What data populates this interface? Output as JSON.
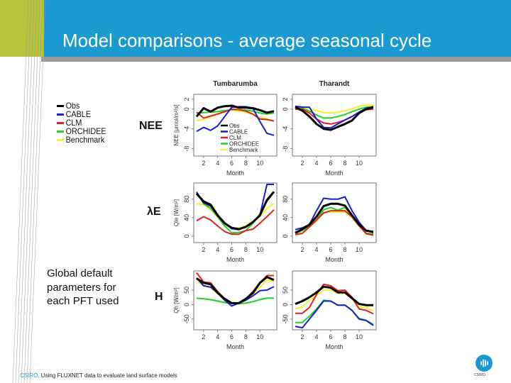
{
  "slide": {
    "title": "Model comparisons - average seasonal cycle",
    "row_labels": [
      "NEE",
      "λE",
      "H"
    ],
    "note": "Global default parameters for each PFT used",
    "footer_brand": "CSIRO.",
    "footer_text": " Using FLUXNET data to evaluate land surface models",
    "logo_text": "CSIRO"
  },
  "legend": [
    {
      "name": "Obs",
      "color": "#000000"
    },
    {
      "name": "CABLE",
      "color": "#1c1cd0"
    },
    {
      "name": "CLM",
      "color": "#e02020"
    },
    {
      "name": "ORCHIDEE",
      "color": "#22d022"
    },
    {
      "name": "Benchmark",
      "color": "#f4f030"
    }
  ],
  "chart_data": [
    {
      "type": "line",
      "title": "Tumbarumba",
      "xlabel": "Month",
      "ylabel": "NEE [µmol/m²/s]",
      "xlim": [
        0.6,
        12.4
      ],
      "ylim": [
        -9.5,
        3
      ],
      "xticks": [
        2,
        4,
        6,
        8,
        10
      ],
      "yticks": [
        2,
        0,
        -4,
        -8
      ],
      "legend": "inside-bottom",
      "x": [
        1,
        2,
        3,
        4,
        5,
        6,
        7,
        8,
        9,
        10,
        11,
        12
      ],
      "series": [
        {
          "name": "Obs",
          "values": [
            -1.5,
            0.2,
            -0.5,
            0.3,
            0.6,
            0.7,
            0.3,
            0.3,
            0.2,
            -0.2,
            -0.7,
            -0.4
          ]
        },
        {
          "name": "CABLE",
          "values": [
            -4.5,
            -3.7,
            -4.3,
            -3.4,
            -1.5,
            0.4,
            0.5,
            0.5,
            0.2,
            -2.5,
            -4.9,
            -5.3
          ]
        },
        {
          "name": "CLM",
          "values": [
            -0.6,
            -1.8,
            -1.4,
            -1,
            -0.5,
            0,
            -0.1,
            -0.4,
            -1,
            -2,
            -2.1,
            -2.4
          ]
        },
        {
          "name": "ORCHIDEE",
          "values": [
            -0.8,
            -0.7,
            -0.6,
            -0.5,
            -0.3,
            -0.1,
            -0.1,
            -0.2,
            -0.4,
            -0.8,
            -1,
            -0.8
          ]
        },
        {
          "name": "Benchmark",
          "values": [
            -2.3,
            -2.1,
            -1.6,
            -0.9,
            -0.4,
            -0.2,
            -0.4,
            -0.6,
            -1.1,
            -1.6,
            -2,
            -2.4
          ]
        }
      ]
    },
    {
      "type": "line",
      "title": "Tharandt",
      "xlabel": "Month",
      "ylabel": "",
      "xlim": [
        0.6,
        12.4
      ],
      "ylim": [
        -9.5,
        3
      ],
      "xticks": [
        2,
        4,
        6,
        8,
        10
      ],
      "yticks": [
        2,
        0,
        -4,
        -8
      ],
      "x": [
        1,
        2,
        3,
        4,
        5,
        6,
        7,
        8,
        9,
        10,
        11,
        12
      ],
      "series": [
        {
          "name": "Obs",
          "values": [
            0.4,
            -0.3,
            -1.5,
            -3,
            -4,
            -4.2,
            -3.6,
            -3,
            -2.3,
            -0.8,
            0,
            0.4
          ]
        },
        {
          "name": "CABLE",
          "values": [
            0.6,
            0.4,
            0.4,
            -2,
            -3.7,
            -3.8,
            -3,
            -2.2,
            -1.5,
            -0.6,
            0.2,
            0.4
          ]
        },
        {
          "name": "CLM",
          "values": [
            0,
            0,
            -0.8,
            -2,
            -2.8,
            -3,
            -2.7,
            -2.2,
            -1.5,
            -0.6,
            -0.1,
            0
          ]
        },
        {
          "name": "ORCHIDEE",
          "values": [
            0.5,
            0.2,
            -0.4,
            -1.2,
            -1.8,
            -1.8,
            -1.5,
            -1.1,
            -0.5,
            0,
            0.4,
            0.5
          ]
        },
        {
          "name": "Benchmark",
          "values": [
            0.6,
            0.5,
            0.1,
            -0.3,
            -0.7,
            -0.8,
            -0.6,
            -0.3,
            0.1,
            0.6,
            0.8,
            0.8
          ]
        }
      ]
    },
    {
      "type": "line",
      "title": "",
      "xlabel": "Month",
      "ylabel": "Qle [W/m²]",
      "xlim": [
        0.6,
        12.4
      ],
      "ylim": [
        -14,
        115
      ],
      "xticks": [
        2,
        4,
        6,
        8,
        10
      ],
      "yticks": [
        0,
        40,
        80
      ],
      "x": [
        1,
        2,
        3,
        4,
        5,
        6,
        7,
        8,
        9,
        10,
        11,
        12
      ],
      "series": [
        {
          "name": "Obs",
          "values": [
            92,
            75,
            68,
            45,
            28,
            18,
            15,
            20,
            30,
            45,
            78,
            96
          ]
        },
        {
          "name": "CABLE",
          "values": [
            95,
            72,
            65,
            45,
            28,
            16,
            14,
            20,
            30,
            45,
            112,
            112
          ]
        },
        {
          "name": "CLM",
          "values": [
            33,
            42,
            35,
            22,
            10,
            4,
            4,
            12,
            15,
            28,
            42,
            57
          ]
        },
        {
          "name": "ORCHIDEE",
          "values": [
            96,
            70,
            60,
            42,
            22,
            7,
            8,
            12,
            28,
            48,
            75,
            96
          ]
        },
        {
          "name": "Benchmark",
          "values": [
            70,
            68,
            58,
            40,
            25,
            18,
            18,
            22,
            32,
            42,
            60,
            70
          ]
        }
      ]
    },
    {
      "type": "line",
      "title": "",
      "xlabel": "Month",
      "ylabel": "",
      "xlim": [
        0.6,
        12.4
      ],
      "ylim": [
        -14,
        115
      ],
      "xticks": [
        2,
        4,
        6,
        8,
        10
      ],
      "yticks": [
        0,
        40,
        80
      ],
      "x": [
        1,
        2,
        3,
        4,
        5,
        6,
        7,
        8,
        9,
        10,
        11,
        12
      ],
      "series": [
        {
          "name": "Obs",
          "values": [
            7,
            15,
            25,
            42,
            65,
            70,
            70,
            66,
            45,
            25,
            12,
            9
          ]
        },
        {
          "name": "CABLE",
          "values": [
            14,
            18,
            25,
            55,
            82,
            80,
            80,
            85,
            55,
            30,
            12,
            8
          ]
        },
        {
          "name": "CLM",
          "values": [
            3,
            6,
            20,
            35,
            50,
            55,
            55,
            55,
            42,
            22,
            5,
            2
          ]
        },
        {
          "name": "ORCHIDEE",
          "values": [
            5,
            12,
            22,
            35,
            57,
            62,
            56,
            62,
            45,
            25,
            6,
            5
          ]
        },
        {
          "name": "Benchmark",
          "values": [
            9,
            12,
            20,
            32,
            52,
            52,
            52,
            52,
            40,
            22,
            12,
            10
          ]
        }
      ]
    },
    {
      "type": "line",
      "title": "",
      "xlabel": "Month",
      "ylabel": "Qh [W/m²]",
      "xlim": [
        0.6,
        12.4
      ],
      "ylim": [
        -87,
        116
      ],
      "xticks": [
        2,
        4,
        6,
        8,
        10
      ],
      "yticks": [
        -50,
        0,
        50
      ],
      "x": [
        1,
        2,
        3,
        4,
        5,
        6,
        7,
        8,
        9,
        10,
        11,
        12
      ],
      "series": [
        {
          "name": "Obs",
          "values": [
            90,
            75,
            70,
            40,
            20,
            5,
            5,
            20,
            40,
            75,
            95,
            85
          ]
        },
        {
          "name": "CABLE",
          "values": [
            92,
            65,
            60,
            40,
            15,
            -5,
            5,
            15,
            30,
            48,
            50,
            62
          ]
        },
        {
          "name": "CLM",
          "values": [
            110,
            78,
            75,
            45,
            20,
            5,
            5,
            20,
            45,
            75,
            100,
            100
          ]
        },
        {
          "name": "ORCHIDEE",
          "values": [
            22,
            20,
            17,
            12,
            7,
            3,
            3,
            5,
            10,
            17,
            22,
            22
          ]
        },
        {
          "name": "Benchmark",
          "values": [
            80,
            65,
            58,
            38,
            15,
            3,
            3,
            15,
            35,
            60,
            85,
            80
          ]
        }
      ]
    },
    {
      "type": "line",
      "title": "",
      "xlabel": "Month",
      "ylabel": "",
      "xlim": [
        0.6,
        12.4
      ],
      "ylim": [
        -87,
        116
      ],
      "xticks": [
        2,
        4,
        6,
        8,
        10
      ],
      "yticks": [
        -50,
        0,
        50
      ],
      "x": [
        1,
        2,
        3,
        4,
        5,
        6,
        7,
        8,
        9,
        10,
        11,
        12
      ],
      "series": [
        {
          "name": "Obs",
          "values": [
            2,
            12,
            25,
            42,
            62,
            58,
            42,
            42,
            22,
            2,
            -2,
            -2
          ]
        },
        {
          "name": "CABLE",
          "values": [
            -75,
            -80,
            -50,
            -20,
            12,
            12,
            -2,
            -2,
            -20,
            -50,
            -55,
            -72
          ]
        },
        {
          "name": "CLM",
          "values": [
            -30,
            -30,
            -10,
            35,
            70,
            65,
            48,
            50,
            25,
            -15,
            -20,
            -32
          ]
        },
        {
          "name": "ORCHIDEE",
          "values": [
            -62,
            -62,
            -40,
            -15,
            15,
            12,
            -2,
            -2,
            -20,
            -48,
            -55,
            -68
          ]
        },
        {
          "name": "Benchmark",
          "values": [
            -15,
            -8,
            15,
            30,
            50,
            50,
            38,
            40,
            20,
            -8,
            -10,
            -22
          ]
        }
      ]
    }
  ]
}
